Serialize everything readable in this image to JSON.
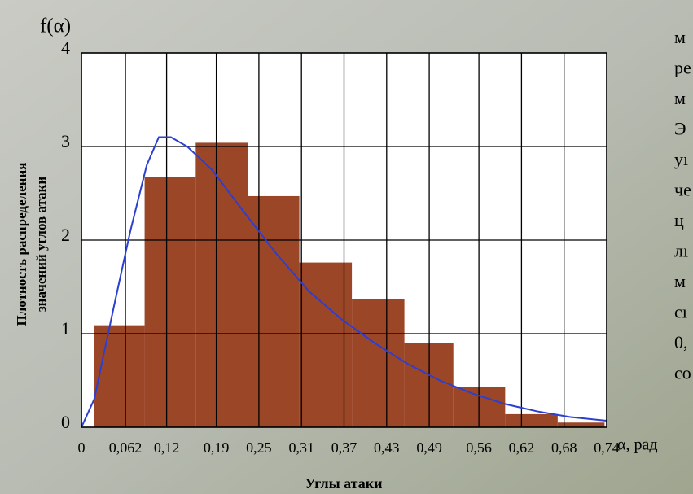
{
  "chart_data": {
    "type": "histogram",
    "y_title": "f(α)",
    "y_label_lines": [
      "Плотность распределения",
      "значений углов атаки"
    ],
    "x_label": "Углы атаки",
    "x_unit": "α, рад",
    "bins": [
      0.018,
      0.089,
      0.161,
      0.235,
      0.307,
      0.381,
      0.455,
      0.524,
      0.597,
      0.671,
      0.737
    ],
    "values": [
      1.09,
      2.67,
      3.04,
      2.47,
      1.76,
      1.37,
      0.9,
      0.43,
      0.14,
      0.05
    ],
    "color": "#9c4628",
    "curve": {
      "color": "#2b3fd0",
      "x": [
        0,
        0.018,
        0.046,
        0.069,
        0.092,
        0.109,
        0.126,
        0.149,
        0.184,
        0.229,
        0.275,
        0.321,
        0.367,
        0.413,
        0.459,
        0.505,
        0.551,
        0.596,
        0.642,
        0.688,
        0.74
      ],
      "y": [
        0,
        0.3,
        1.3,
        2.1,
        2.8,
        3.1,
        3.1,
        3.0,
        2.75,
        2.3,
        1.85,
        1.45,
        1.15,
        0.9,
        0.68,
        0.5,
        0.36,
        0.25,
        0.17,
        0.11,
        0.07
      ]
    },
    "xlim": [
      0,
      0.74
    ],
    "xticks": [
      0,
      {
        "value": 0.062,
        "label": "0,062"
      },
      {
        "value": 0.12,
        "label": "0,12"
      },
      {
        "value": 0.19,
        "label": "0,19"
      },
      {
        "value": 0.25,
        "label": "0,25"
      },
      {
        "value": 0.31,
        "label": "0,31"
      },
      {
        "value": 0.37,
        "label": "0,37"
      },
      {
        "value": 0.43,
        "label": "0,43"
      },
      {
        "value": 0.49,
        "label": "0,49"
      },
      {
        "value": 0.56,
        "label": "0,56"
      },
      {
        "value": 0.62,
        "label": "0,62"
      },
      {
        "value": 0.68,
        "label": "0,68"
      },
      {
        "value": 0.74,
        "label": "0,74"
      }
    ],
    "ylim": [
      0,
      4
    ],
    "yticks": [
      0,
      1,
      2,
      3,
      4
    ],
    "grid": true
  },
  "side_text": [
    "м",
    "ре",
    "м",
    "Э",
    "уı",
    "че",
    "ц",
    "лı",
    "м",
    "сı",
    "0,",
    "со"
  ]
}
